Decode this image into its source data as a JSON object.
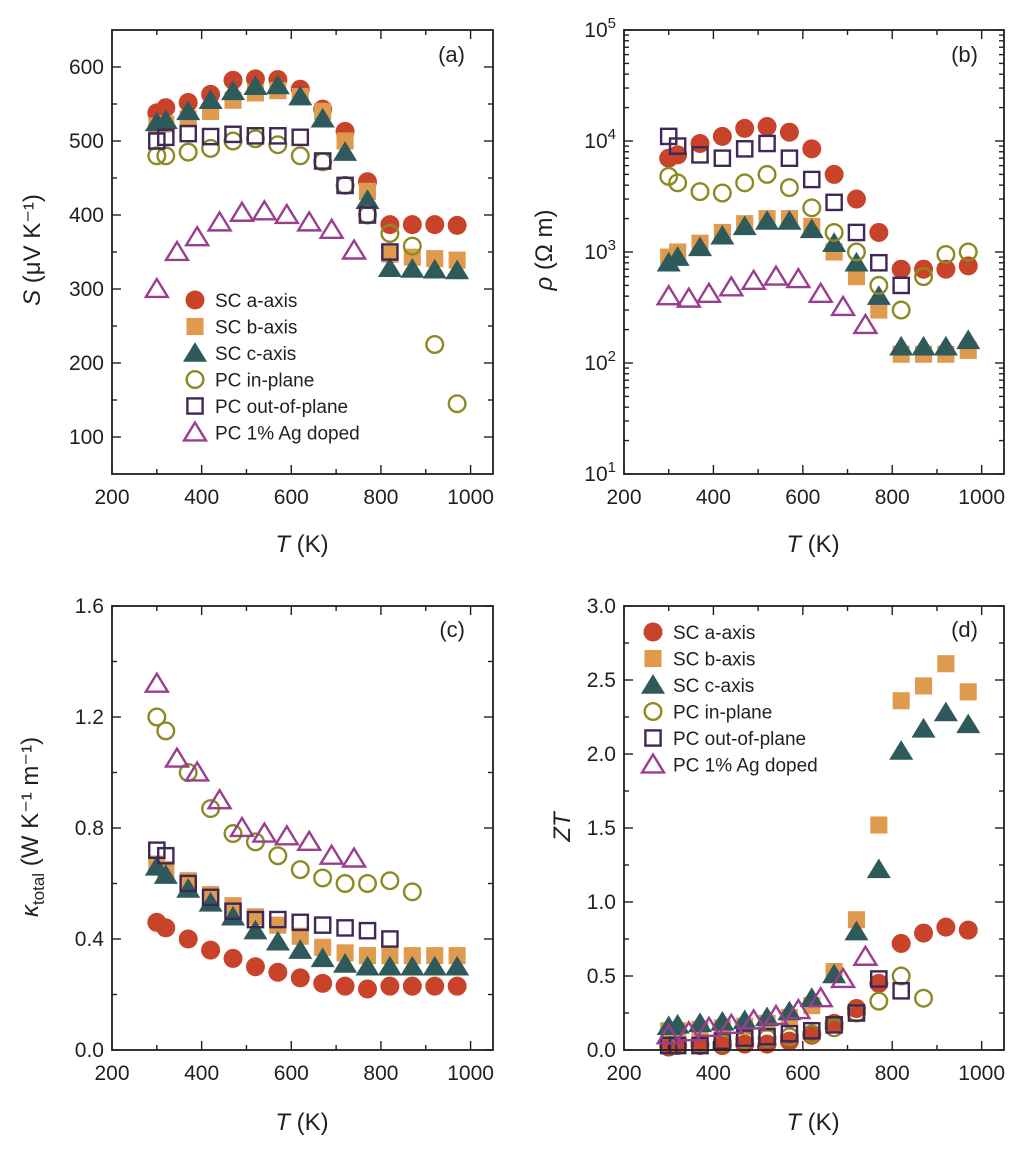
{
  "colors": {
    "sc_a": "#c8432a",
    "sc_b": "#e09a4d",
    "sc_c": "#2f5a5c",
    "pc_in": "#8c8a22",
    "pc_out": "#3f2758",
    "pc_ag": "#9b3d8f",
    "axis": "#231f20"
  },
  "chart_data": [
    {
      "type": "scatter",
      "panel_label": "(a)",
      "title": "",
      "xlabel": "T",
      "xlabel_unit": "(K)",
      "ylabel": "S",
      "ylabel_unit": "(μV K⁻¹)",
      "xlim": [
        200,
        1050
      ],
      "ylim": [
        50,
        650
      ],
      "xticks": [
        200,
        400,
        600,
        800,
        1000
      ],
      "yticks": [
        100,
        200,
        300,
        400,
        500,
        600
      ],
      "legend_position": "bottom-left",
      "series": [
        {
          "name": "SC a-axis",
          "marker": "circle-filled",
          "color": "#c8432a",
          "x": [
            300,
            320,
            370,
            420,
            470,
            520,
            570,
            620,
            670,
            720,
            770,
            820,
            870,
            920,
            970
          ],
          "y": [
            538,
            545,
            552,
            563,
            582,
            584,
            583,
            570,
            543,
            513,
            445,
            387,
            387,
            387,
            386
          ]
        },
        {
          "name": "SC b-axis",
          "marker": "square-filled",
          "color": "#e09a4d",
          "x": [
            300,
            320,
            370,
            420,
            470,
            520,
            570,
            620,
            670,
            720,
            770,
            820,
            870,
            920,
            970
          ],
          "y": [
            520,
            523,
            530,
            540,
            555,
            565,
            568,
            560,
            540,
            500,
            432,
            347,
            343,
            341,
            339
          ]
        },
        {
          "name": "SC c-axis",
          "marker": "triangle-filled",
          "color": "#2f5a5c",
          "x": [
            300,
            320,
            370,
            420,
            470,
            520,
            570,
            620,
            670,
            720,
            770,
            820,
            870,
            920,
            970
          ],
          "y": [
            525,
            528,
            540,
            555,
            567,
            574,
            575,
            560,
            530,
            485,
            420,
            328,
            327,
            326,
            325
          ]
        },
        {
          "name": "PC in-plane",
          "marker": "circle-open",
          "color": "#8c8a22",
          "x": [
            300,
            320,
            370,
            420,
            470,
            520,
            570,
            620,
            670,
            720,
            770,
            820,
            870,
            920,
            970
          ],
          "y": [
            480,
            480,
            485,
            490,
            500,
            503,
            495,
            480,
            472,
            440,
            400,
            375,
            358,
            225,
            145
          ]
        },
        {
          "name": "PC out-of-plane",
          "marker": "square-open",
          "color": "#3f2758",
          "x": [
            300,
            320,
            370,
            420,
            470,
            520,
            570,
            620,
            670,
            720,
            770,
            820
          ],
          "y": [
            500,
            505,
            510,
            506,
            509,
            507,
            507,
            505,
            473,
            440,
            400,
            350
          ]
        },
        {
          "name": "PC 1% Ag doped",
          "marker": "triangle-open",
          "color": "#9b3d8f",
          "x": [
            300,
            345,
            390,
            440,
            490,
            540,
            590,
            640,
            690,
            740
          ],
          "y": [
            300,
            350,
            370,
            390,
            403,
            405,
            400,
            390,
            380,
            352
          ]
        }
      ]
    },
    {
      "type": "scatter",
      "panel_label": "(b)",
      "title": "",
      "xlabel": "T",
      "xlabel_unit": "(K)",
      "ylabel": "ρ",
      "ylabel_unit": "(Ω m)",
      "yscale": "log",
      "xlim": [
        200,
        1050
      ],
      "ylim": [
        10,
        100000
      ],
      "xticks": [
        200,
        400,
        600,
        800,
        1000
      ],
      "yticks": [
        10,
        100,
        1000,
        10000,
        100000
      ],
      "ytick_labels": [
        {
          "base": "10",
          "exp": "1"
        },
        {
          "base": "10",
          "exp": "2"
        },
        {
          "base": "10",
          "exp": "3"
        },
        {
          "base": "10",
          "exp": "4"
        },
        {
          "base": "10",
          "exp": "5"
        }
      ],
      "series": [
        {
          "name": "SC a-axis",
          "marker": "circle-filled",
          "color": "#c8432a",
          "x": [
            300,
            320,
            370,
            420,
            470,
            520,
            570,
            620,
            670,
            720,
            770,
            820,
            870,
            920,
            970
          ],
          "y": [
            7000,
            7500,
            9500,
            11000,
            13000,
            13500,
            12000,
            8500,
            5000,
            3000,
            1500,
            700,
            700,
            700,
            750
          ]
        },
        {
          "name": "SC b-axis",
          "marker": "square-filled",
          "color": "#e09a4d",
          "x": [
            300,
            320,
            370,
            420,
            470,
            520,
            570,
            620,
            670,
            720,
            770,
            820,
            870,
            920,
            970
          ],
          "y": [
            900,
            1000,
            1200,
            1500,
            1800,
            2000,
            2000,
            1700,
            1000,
            600,
            300,
            120,
            120,
            120,
            130
          ]
        },
        {
          "name": "SC c-axis",
          "marker": "triangle-filled",
          "color": "#2f5a5c",
          "x": [
            300,
            320,
            370,
            420,
            470,
            520,
            570,
            620,
            670,
            720,
            770,
            820,
            870,
            920,
            970
          ],
          "y": [
            800,
            900,
            1100,
            1400,
            1700,
            1900,
            1900,
            1600,
            1200,
            800,
            400,
            140,
            140,
            140,
            160
          ]
        },
        {
          "name": "PC in-plane",
          "marker": "circle-open",
          "color": "#8c8a22",
          "x": [
            300,
            320,
            370,
            420,
            470,
            520,
            570,
            620,
            670,
            720,
            770,
            820,
            870,
            920,
            970
          ],
          "y": [
            4800,
            4200,
            3500,
            3400,
            4200,
            5000,
            3800,
            2500,
            1500,
            1000,
            500,
            300,
            600,
            950,
            1000
          ]
        },
        {
          "name": "PC out-of-plane",
          "marker": "square-open",
          "color": "#3f2758",
          "x": [
            300,
            320,
            370,
            420,
            470,
            520,
            570,
            620,
            670,
            720,
            770,
            820
          ],
          "y": [
            11000,
            9000,
            7500,
            7000,
            8500,
            9500,
            7000,
            4500,
            2800,
            1500,
            800,
            500
          ]
        },
        {
          "name": "PC 1% Ag doped",
          "marker": "triangle-open",
          "color": "#9b3d8f",
          "x": [
            300,
            345,
            390,
            440,
            490,
            540,
            590,
            640,
            690,
            740
          ],
          "y": [
            400,
            380,
            420,
            480,
            550,
            600,
            570,
            420,
            320,
            220
          ]
        }
      ]
    },
    {
      "type": "scatter",
      "panel_label": "(c)",
      "title": "",
      "xlabel": "T",
      "xlabel_unit": "(K)",
      "ylabel": "κ",
      "ylabel_sub": "total",
      "ylabel_unit": "(W K⁻¹ m⁻¹)",
      "xlim": [
        200,
        1050
      ],
      "ylim": [
        0,
        1.6
      ],
      "xticks": [
        200,
        400,
        600,
        800,
        1000
      ],
      "yticks": [
        0.0,
        0.4,
        0.8,
        1.2,
        1.6
      ],
      "ytick_labels": [
        "0.0",
        "0.4",
        "0.8",
        "1.2",
        "1.6"
      ],
      "series": [
        {
          "name": "SC a-axis",
          "marker": "circle-filled",
          "color": "#c8432a",
          "x": [
            300,
            320,
            370,
            420,
            470,
            520,
            570,
            620,
            670,
            720,
            770,
            820,
            870,
            920,
            970
          ],
          "y": [
            0.46,
            0.44,
            0.4,
            0.36,
            0.33,
            0.3,
            0.28,
            0.26,
            0.24,
            0.23,
            0.22,
            0.23,
            0.23,
            0.23,
            0.23
          ]
        },
        {
          "name": "SC b-axis",
          "marker": "square-filled",
          "color": "#e09a4d",
          "x": [
            300,
            320,
            370,
            420,
            470,
            520,
            570,
            620,
            670,
            720,
            770,
            820,
            870,
            920,
            970
          ],
          "y": [
            0.67,
            0.65,
            0.61,
            0.56,
            0.52,
            0.48,
            0.45,
            0.41,
            0.37,
            0.35,
            0.34,
            0.34,
            0.34,
            0.34,
            0.34
          ]
        },
        {
          "name": "SC c-axis",
          "marker": "triangle-filled",
          "color": "#2f5a5c",
          "x": [
            300,
            320,
            370,
            420,
            470,
            520,
            570,
            620,
            670,
            720,
            770,
            820,
            870,
            920,
            970
          ],
          "y": [
            0.66,
            0.63,
            0.58,
            0.53,
            0.48,
            0.43,
            0.39,
            0.36,
            0.33,
            0.31,
            0.3,
            0.3,
            0.3,
            0.3,
            0.3
          ]
        },
        {
          "name": "PC in-plane",
          "marker": "circle-open",
          "color": "#8c8a22",
          "x": [
            300,
            320,
            370,
            420,
            470,
            520,
            570,
            620,
            670,
            720,
            770,
            820,
            870
          ],
          "y": [
            1.2,
            1.15,
            1.0,
            0.87,
            0.78,
            0.75,
            0.7,
            0.65,
            0.62,
            0.6,
            0.6,
            0.61,
            0.57
          ]
        },
        {
          "name": "PC out-of-plane",
          "marker": "square-open",
          "color": "#3f2758",
          "x": [
            300,
            320,
            370,
            420,
            470,
            520,
            570,
            620,
            670,
            720,
            770,
            820
          ],
          "y": [
            0.72,
            0.7,
            0.6,
            0.55,
            0.5,
            0.47,
            0.47,
            0.46,
            0.45,
            0.44,
            0.43,
            0.4
          ]
        },
        {
          "name": "PC 1% Ag doped",
          "marker": "triangle-open",
          "color": "#9b3d8f",
          "x": [
            300,
            345,
            390,
            440,
            490,
            540,
            590,
            640,
            690,
            740
          ],
          "y": [
            1.32,
            1.05,
            1.0,
            0.9,
            0.8,
            0.78,
            0.77,
            0.75,
            0.7,
            0.69
          ]
        }
      ]
    },
    {
      "type": "scatter",
      "panel_label": "(d)",
      "title": "",
      "xlabel": "T",
      "xlabel_unit": "(K)",
      "ylabel": "ZT",
      "xlim": [
        200,
        1050
      ],
      "ylim": [
        0,
        3.0
      ],
      "xticks": [
        200,
        400,
        600,
        800,
        1000
      ],
      "yticks": [
        0.0,
        0.5,
        1.0,
        1.5,
        2.0,
        2.5,
        3.0
      ],
      "ytick_labels": [
        "0.0",
        "0.5",
        "1.0",
        "1.5",
        "2.0",
        "2.5",
        "3.0"
      ],
      "legend_position": "top-left",
      "series": [
        {
          "name": "SC a-axis",
          "marker": "circle-filled",
          "color": "#c8432a",
          "x": [
            300,
            320,
            370,
            420,
            470,
            520,
            570,
            620,
            670,
            720,
            770,
            820,
            870,
            920,
            970
          ],
          "y": [
            0.02,
            0.03,
            0.03,
            0.03,
            0.04,
            0.04,
            0.06,
            0.1,
            0.18,
            0.28,
            0.45,
            0.72,
            0.79,
            0.83,
            0.81
          ]
        },
        {
          "name": "SC b-axis",
          "marker": "square-filled",
          "color": "#e09a4d",
          "x": [
            300,
            320,
            370,
            420,
            470,
            520,
            570,
            620,
            670,
            720,
            770,
            820,
            870,
            920,
            970
          ],
          "y": [
            0.13,
            0.13,
            0.14,
            0.15,
            0.16,
            0.18,
            0.22,
            0.3,
            0.53,
            0.88,
            1.52,
            2.36,
            2.46,
            2.61,
            2.42
          ]
        },
        {
          "name": "SC c-axis",
          "marker": "triangle-filled",
          "color": "#2f5a5c",
          "x": [
            300,
            320,
            370,
            420,
            470,
            520,
            570,
            620,
            670,
            720,
            770,
            820,
            870,
            920,
            970
          ],
          "y": [
            0.16,
            0.17,
            0.18,
            0.19,
            0.2,
            0.22,
            0.26,
            0.35,
            0.51,
            0.8,
            1.22,
            2.02,
            2.17,
            2.28,
            2.2
          ]
        },
        {
          "name": "PC in-plane",
          "marker": "circle-open",
          "color": "#8c8a22",
          "x": [
            300,
            320,
            370,
            420,
            470,
            520,
            570,
            620,
            670,
            720,
            770,
            820,
            870
          ],
          "y": [
            0.03,
            0.03,
            0.04,
            0.05,
            0.07,
            0.08,
            0.09,
            0.11,
            0.15,
            0.25,
            0.33,
            0.5,
            0.35
          ]
        },
        {
          "name": "PC out-of-plane",
          "marker": "square-open",
          "color": "#3f2758",
          "x": [
            300,
            320,
            370,
            420,
            470,
            520,
            570,
            620,
            670,
            720,
            770,
            820
          ],
          "y": [
            0.03,
            0.03,
            0.03,
            0.06,
            0.08,
            0.09,
            0.11,
            0.13,
            0.17,
            0.25,
            0.48,
            0.4
          ]
        },
        {
          "name": "PC 1% Ag doped",
          "marker": "triangle-open",
          "color": "#9b3d8f",
          "x": [
            300,
            345,
            390,
            440,
            490,
            540,
            590,
            640,
            690,
            740
          ],
          "y": [
            0.1,
            0.12,
            0.15,
            0.17,
            0.2,
            0.23,
            0.27,
            0.35,
            0.48,
            0.63
          ]
        }
      ]
    }
  ]
}
